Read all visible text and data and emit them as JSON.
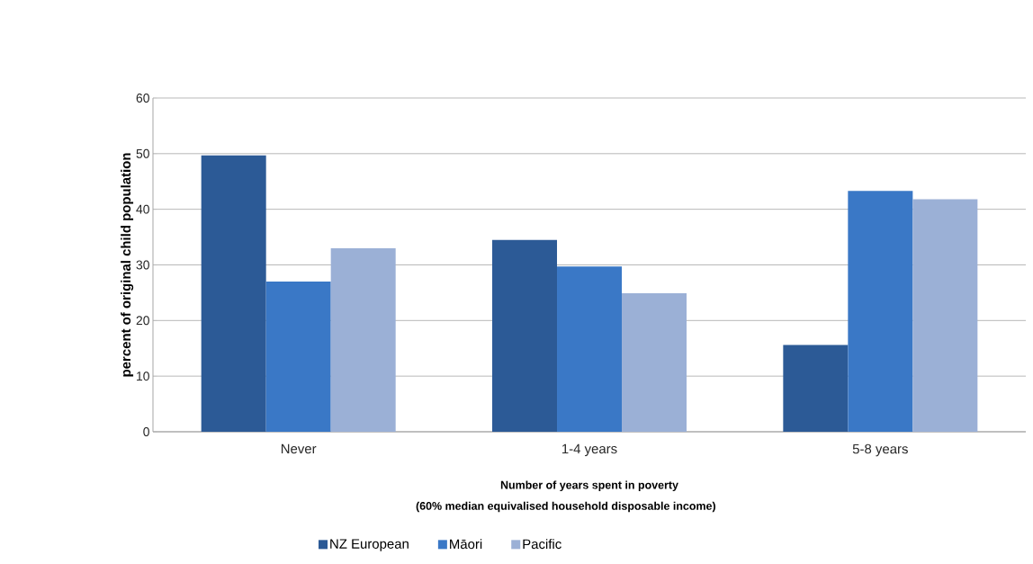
{
  "chart_data": {
    "type": "bar",
    "ylabel": "percent of original child population",
    "xlabel": "Number of years spent in poverty",
    "annotations": [
      "(60% median equivalised household disposable income)"
    ],
    "categories": [
      "Never",
      "1-4 years",
      "5-8 years"
    ],
    "series": [
      {
        "name": "NZ European",
        "color": "#2c5a96",
        "values": [
          49.7,
          34.5,
          15.6
        ]
      },
      {
        "name": "Māori",
        "color": "#3a78c6",
        "values": [
          27.0,
          29.7,
          43.3
        ]
      },
      {
        "name": "Pacific",
        "color": "#9bb0d6",
        "values": [
          33.0,
          24.9,
          41.8
        ]
      }
    ],
    "ylim": [
      0,
      60
    ],
    "yticks": [
      0,
      10,
      20,
      30,
      40,
      50,
      60
    ],
    "grid": "y",
    "legend": "bottom"
  }
}
